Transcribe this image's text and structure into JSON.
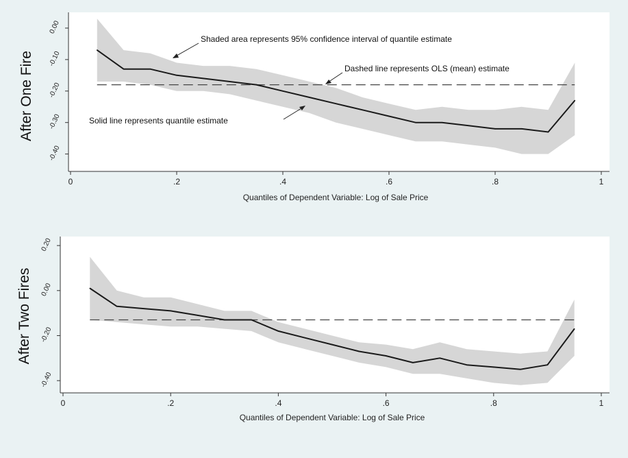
{
  "chart_data": [
    {
      "type": "line",
      "ytitle": "After One Fire",
      "xlabel": "Quantiles of Dependent Variable: Log of Sale Price",
      "xlim": [
        0,
        1
      ],
      "xticks": [
        0,
        0.2,
        0.4,
        0.6,
        0.8,
        1
      ],
      "xtick_labels": [
        "0",
        ".2",
        ".4",
        ".6",
        ".8",
        "1"
      ],
      "ylim": [
        -0.44,
        0.05
      ],
      "yticks": [
        0.0,
        -0.1,
        -0.2,
        -0.3,
        -0.4
      ],
      "ytick_labels": [
        "0.00",
        "-0.10",
        "-0.20",
        "-0.30",
        "-0.40"
      ],
      "x": [
        0.05,
        0.1,
        0.15,
        0.2,
        0.25,
        0.3,
        0.35,
        0.4,
        0.45,
        0.5,
        0.55,
        0.6,
        0.65,
        0.7,
        0.75,
        0.8,
        0.85,
        0.9,
        0.95
      ],
      "series": [
        {
          "name": "quantile estimate",
          "values": [
            -0.07,
            -0.13,
            -0.13,
            -0.15,
            -0.16,
            -0.17,
            -0.18,
            -0.2,
            -0.22,
            -0.24,
            -0.26,
            -0.28,
            -0.3,
            -0.3,
            -0.31,
            -0.32,
            -0.32,
            -0.33,
            -0.23
          ]
        },
        {
          "name": "ci_upper",
          "values": [
            0.03,
            -0.07,
            -0.08,
            -0.11,
            -0.12,
            -0.12,
            -0.13,
            -0.15,
            -0.17,
            -0.19,
            -0.22,
            -0.24,
            -0.26,
            -0.25,
            -0.26,
            -0.26,
            -0.25,
            -0.26,
            -0.11
          ]
        },
        {
          "name": "ci_lower",
          "values": [
            -0.17,
            -0.17,
            -0.18,
            -0.2,
            -0.2,
            -0.21,
            -0.23,
            -0.25,
            -0.27,
            -0.3,
            -0.32,
            -0.34,
            -0.36,
            -0.36,
            -0.37,
            -0.38,
            -0.4,
            -0.4,
            -0.34
          ]
        }
      ],
      "ols": -0.18,
      "annotations": [
        "Shaded area represents 95% confidence interval of quantile estimate",
        "Dashed line represents OLS (mean) estimate",
        "Solid line represents quantile estimate"
      ]
    },
    {
      "type": "line",
      "ytitle": "After Two Fires",
      "xlabel": "Quantiles of Dependent Variable: Log of Sale Price",
      "xlim": [
        0,
        1
      ],
      "xticks": [
        0,
        0.2,
        0.4,
        0.6,
        0.8,
        1
      ],
      "xtick_labels": [
        "0",
        ".2",
        ".4",
        ".6",
        ".8",
        "1"
      ],
      "ylim": [
        -0.43,
        0.24
      ],
      "yticks": [
        0.2,
        0.0,
        -0.2,
        -0.4
      ],
      "ytick_labels": [
        "0.20",
        "0.00",
        "-0.20",
        "-0.40"
      ],
      "x": [
        0.05,
        0.1,
        0.15,
        0.2,
        0.25,
        0.3,
        0.35,
        0.4,
        0.45,
        0.5,
        0.55,
        0.6,
        0.65,
        0.7,
        0.75,
        0.8,
        0.85,
        0.9,
        0.95
      ],
      "series": [
        {
          "name": "quantile estimate",
          "values": [
            0.01,
            -0.07,
            -0.08,
            -0.09,
            -0.11,
            -0.13,
            -0.13,
            -0.18,
            -0.21,
            -0.24,
            -0.27,
            -0.29,
            -0.32,
            -0.3,
            -0.33,
            -0.34,
            -0.35,
            -0.33,
            -0.17
          ]
        },
        {
          "name": "ci_upper",
          "values": [
            0.15,
            0.0,
            -0.03,
            -0.03,
            -0.06,
            -0.09,
            -0.09,
            -0.14,
            -0.17,
            -0.2,
            -0.23,
            -0.24,
            -0.26,
            -0.23,
            -0.26,
            -0.27,
            -0.28,
            -0.27,
            -0.04
          ]
        },
        {
          "name": "ci_lower",
          "values": [
            -0.13,
            -0.14,
            -0.15,
            -0.16,
            -0.16,
            -0.17,
            -0.18,
            -0.23,
            -0.26,
            -0.29,
            -0.32,
            -0.34,
            -0.37,
            -0.37,
            -0.39,
            -0.41,
            -0.42,
            -0.41,
            -0.29
          ]
        }
      ],
      "ols": -0.13
    }
  ]
}
